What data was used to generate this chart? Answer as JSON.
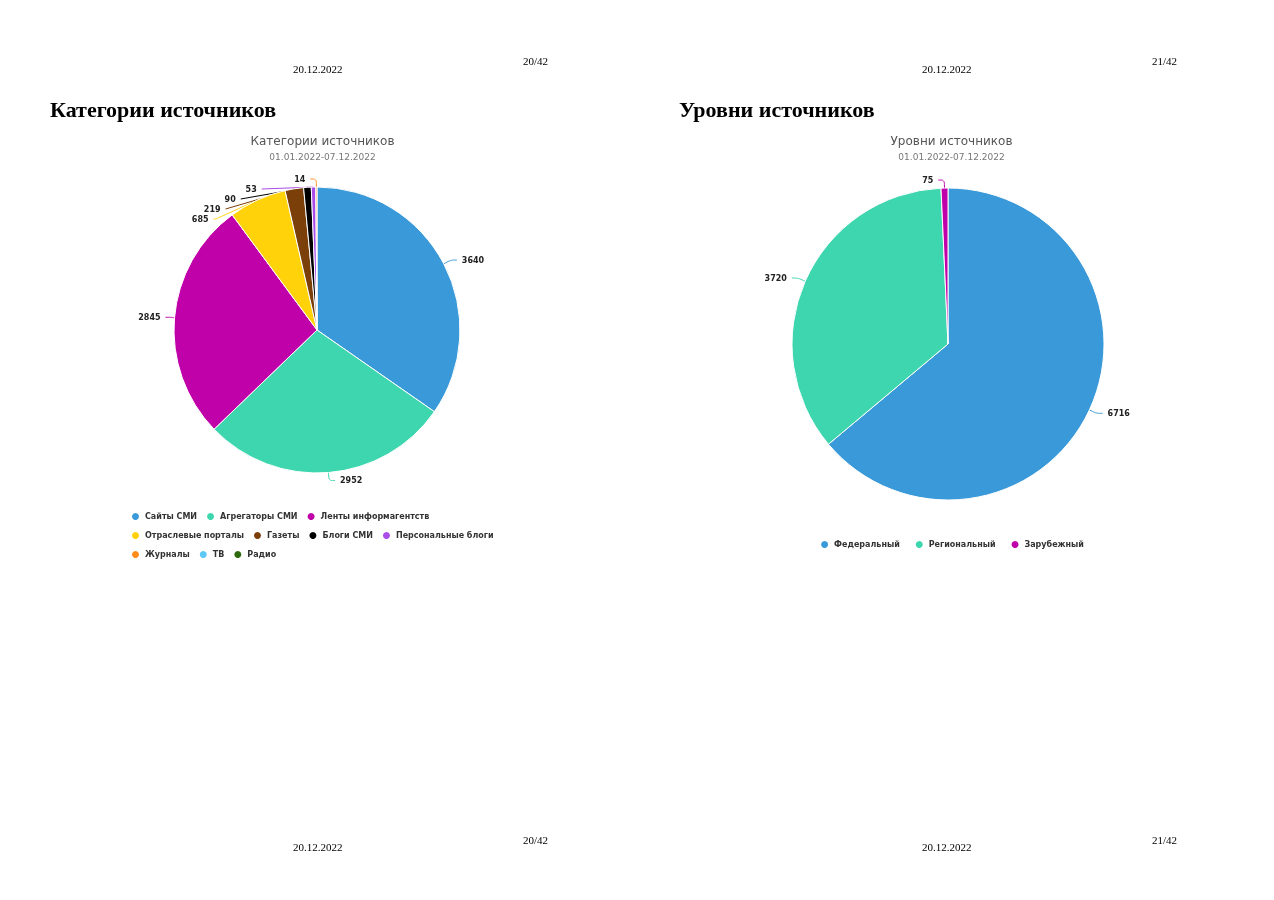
{
  "chart_data": [
    {
      "type": "pie",
      "title": "Категории источников",
      "subtitle": "01.01.2022-07.12.2022",
      "annotations": [
        "20.12.2022",
        "20/42",
        "Категории источников",
        "20.12.2022",
        "20/42"
      ],
      "categories": [
        "Сайты СМИ",
        "Агрегаторы СМИ",
        "Ленты информагентств",
        "Отраслевые порталы",
        "Газеты",
        "Блоги СМИ",
        "Персональные блоги",
        "Журналы",
        "ТВ",
        "Радио"
      ],
      "values": [
        3640,
        2952,
        2845,
        685,
        219,
        90,
        53,
        14,
        null,
        null
      ],
      "colors": [
        "#3a9ad9",
        "#3dd6ae",
        "#c000a8",
        "#ffd20a",
        "#7b3f0a",
        "#000000",
        "#a94de8",
        "#ff8c1a",
        "#5bc8f5",
        "#2e6b0e"
      ],
      "data_labels": true,
      "legend": "bottom"
    },
    {
      "type": "pie",
      "title": "Уровни источников",
      "subtitle": "01.01.2022-07.12.2022",
      "annotations": [
        "20.12.2022",
        "21/42",
        "Уровни источников",
        "20.12.2022",
        "21/42"
      ],
      "categories": [
        "Федеральный",
        "Региональный",
        "Зарубежный"
      ],
      "values": [
        6716,
        3720,
        75
      ],
      "colors": [
        "#3a9ad9",
        "#3dd6ae",
        "#c000a8"
      ],
      "data_labels": true,
      "legend": "bottom"
    }
  ]
}
